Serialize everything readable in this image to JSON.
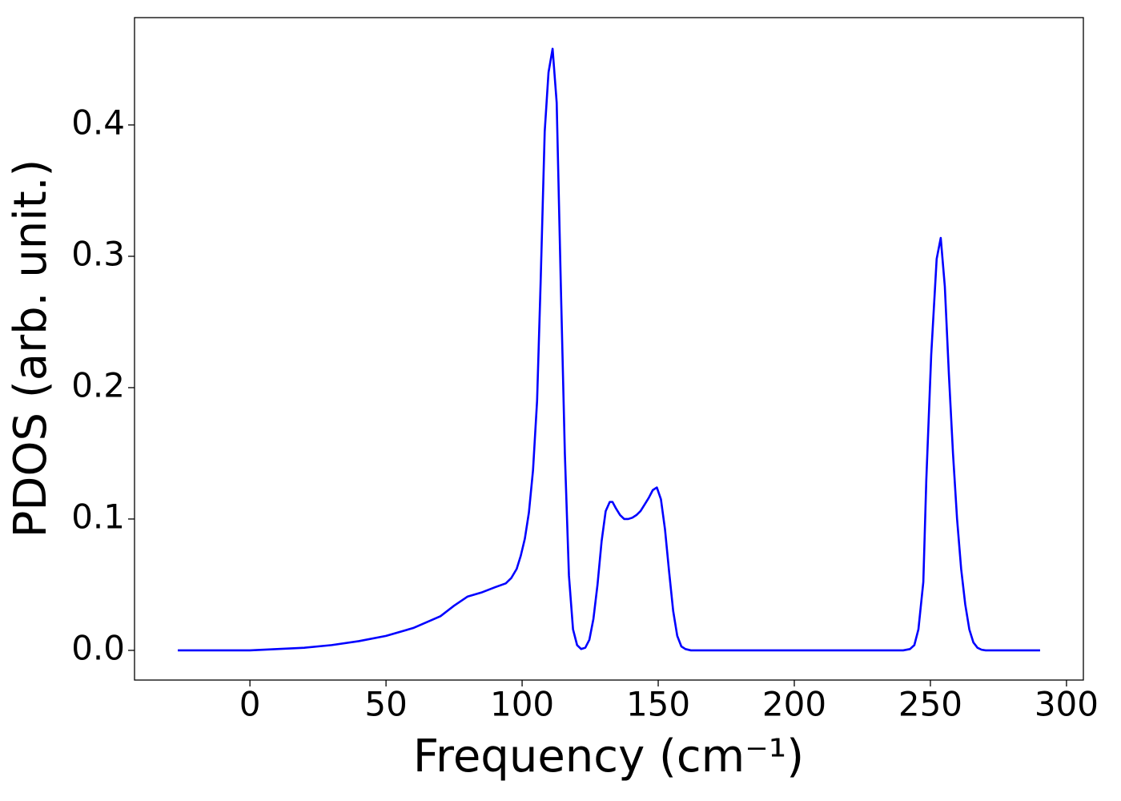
{
  "chart_data": {
    "type": "line",
    "x_label": "Frequency (cm⁻¹)",
    "y_label": "PDOS (arb. unit.)",
    "xlim": [
      -42.4,
      306.2
    ],
    "ylim": [
      -0.0226,
      0.4817
    ],
    "xticks": [
      0,
      50,
      100,
      150,
      200,
      250,
      300
    ],
    "yticks": [
      {
        "value": 0,
        "label": "0.0"
      },
      0.1,
      0.2,
      0.3,
      0.4
    ],
    "series": [
      {
        "color": "#0000ff",
        "x": [
          -26.5,
          0,
          10,
          20,
          30,
          40,
          50,
          60,
          70,
          75,
          80,
          85,
          90,
          94,
          96,
          98,
          99.5,
          101,
          102.5,
          104,
          105.5,
          106.8,
          108.3,
          109.7,
          111.2,
          112.7,
          114.2,
          115.7,
          117.2,
          118.7,
          120.2,
          121.7,
          123.2,
          124.7,
          126.2,
          127.7,
          129.2,
          130.7,
          132.2,
          133.2,
          134.5,
          136,
          137.5,
          139,
          140.5,
          142,
          143.5,
          145,
          146.5,
          148,
          149.5,
          151,
          152.5,
          154,
          155.5,
          157,
          158.5,
          160,
          162,
          200,
          240,
          242.5,
          244.1,
          245.6,
          247.4,
          248.5,
          250.3,
          252.3,
          253.8,
          255.3,
          256.8,
          258.3,
          259.8,
          261.3,
          262.8,
          264.3,
          265.8,
          267.3,
          268.8,
          270.3,
          290.3
        ],
        "values": [
          0,
          0,
          0.001,
          0.002,
          0.004,
          0.007,
          0.011,
          0.017,
          0.026,
          0.034,
          0.041,
          0.044,
          0.048,
          0.051,
          0.055,
          0.062,
          0.072,
          0.085,
          0.105,
          0.137,
          0.19,
          0.28,
          0.395,
          0.44,
          0.458,
          0.417,
          0.28,
          0.15,
          0.057,
          0.016,
          0.004,
          0.001,
          0.002,
          0.008,
          0.024,
          0.05,
          0.083,
          0.106,
          0.113,
          0.113,
          0.108,
          0.103,
          0.1,
          0.1,
          0.101,
          0.103,
          0.106,
          0.111,
          0.116,
          0.122,
          0.124,
          0.115,
          0.092,
          0.06,
          0.03,
          0.011,
          0.003,
          0.001,
          0,
          0,
          0,
          0.001,
          0.004,
          0.016,
          0.052,
          0.13,
          0.225,
          0.298,
          0.314,
          0.277,
          0.21,
          0.15,
          0.1,
          0.062,
          0.035,
          0.016,
          0.006,
          0.002,
          0.0005,
          0,
          0
        ]
      }
    ]
  }
}
